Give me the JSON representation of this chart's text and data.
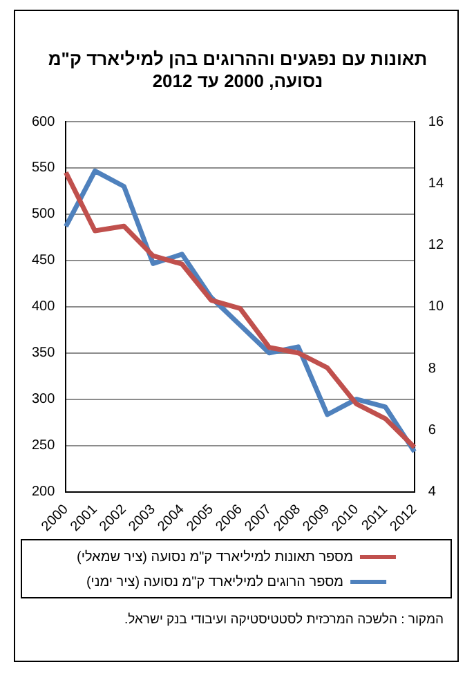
{
  "chart_data": {
    "type": "line",
    "title": "תאונות עם נפגעים וההרוגים בהן למיליארד ק\"מ נסועה, 2000 עד 2012",
    "categories": [
      "2000",
      "2001",
      "2002",
      "2003",
      "2004",
      "2005",
      "2006",
      "2007",
      "2008",
      "2009",
      "2010",
      "2011",
      "2012"
    ],
    "series": [
      {
        "name": "מספר תאונות למיליארד ק\"מ נסועה (ציר שמאלי)",
        "color": "#c0504d",
        "values": [
          545,
          482,
          487,
          455,
          446,
          407,
          398,
          356,
          350,
          334,
          295,
          279,
          248
        ]
      },
      {
        "name": "מספר הרוגים למיליארד ק\"מ נסועה (ציר ימני)",
        "color": "#4f81bd",
        "axis": "y2",
        "values": [
          12.6,
          14.4,
          13.9,
          11.4,
          11.7,
          10.3,
          9.4,
          8.5,
          8.7,
          6.5,
          7.0,
          6.75,
          5.3
        ]
      }
    ],
    "ylim": [
      200,
      600
    ],
    "yticks": [
      200,
      250,
      300,
      350,
      400,
      450,
      500,
      550,
      600
    ],
    "y2lim": [
      4,
      16
    ],
    "y2ticks": [
      4,
      6,
      8,
      10,
      12,
      14,
      16
    ],
    "grid": "y",
    "legend": "bottom",
    "marker": "none",
    "line_style": "solid",
    "annotations": [
      "המקור : הלשכה המרכזית לסטטיסטיקה ועיבודי בנק ישראל."
    ]
  }
}
